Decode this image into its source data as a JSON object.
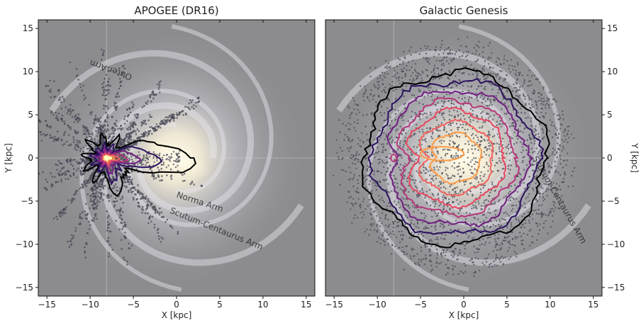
{
  "figure": {
    "background": "#ffffff",
    "backdrop_color": "#8c8c8f",
    "glow_color": "#f4f0e6",
    "point_color": "#4a4a55",
    "ylabel": "Y [kpc]",
    "xlabel": "X [kpc]"
  },
  "chart_data": [
    {
      "type": "scatter",
      "title": "APOGEE (DR16)",
      "xlabel": "X [kpc]",
      "ylabel": "Y [kpc]",
      "xlim": [
        -16,
        16
      ],
      "ylim": [
        -16,
        16
      ],
      "xticks": [
        -15,
        -10,
        -5,
        0,
        5,
        10,
        15
      ],
      "yticks": [
        -15,
        -10,
        -5,
        0,
        5,
        10,
        15
      ],
      "xtick_labels": [
        "−15",
        "−10",
        "−5",
        "0",
        "5",
        "10",
        "15"
      ],
      "ytick_labels": [
        "−15",
        "−10",
        "−5",
        "0",
        "5",
        "10",
        "15"
      ],
      "ylabel_side": "left",
      "sun_position": [
        -8.1,
        0.0
      ],
      "galactic_center": [
        0,
        0
      ],
      "background_labels": [
        "Norma Arm",
        "Scutum-Centaurus Arm",
        "Outer Arm"
      ],
      "density_contours": {
        "colors": [
          "#000000",
          "#2c115f",
          "#721f81",
          "#b73779",
          "#f1605d",
          "#fd9a46",
          "#fcfdbf"
        ],
        "shape": "radial spikes centred on the Sun with an elongated lobe reaching toward the Galactic bar",
        "outer_radius_kpc": 4.5
      }
    },
    {
      "type": "scatter",
      "title": "Galactic Genesis",
      "xlabel": "X [kpc]",
      "ylabel": "Y [kpc]",
      "xlim": [
        -16,
        16
      ],
      "ylim": [
        -16,
        16
      ],
      "xticks": [
        -15,
        -10,
        -5,
        0,
        5,
        10,
        15
      ],
      "yticks": [
        -15,
        -10,
        -5,
        0,
        5,
        10,
        15
      ],
      "xtick_labels": [
        "−15",
        "−10",
        "−5",
        "0",
        "5",
        "10",
        "15"
      ],
      "ytick_labels": [
        "−15",
        "−10",
        "−5",
        "0",
        "5",
        "10",
        "15"
      ],
      "ylabel_side": "right",
      "sun_position": [
        -8.1,
        0.0
      ],
      "galactic_center": [
        0,
        0
      ],
      "background_labels": [
        "Scutum-Centaurus Arm"
      ],
      "density_contours": {
        "colors": [
          "#000000",
          "#2c115f",
          "#721f81",
          "#b73779",
          "#e8465e",
          "#f1605d",
          "#fd9a46"
        ],
        "levels_radius_kpc": [
          10.5,
          9.5,
          8.3,
          7.0,
          5.8,
          4.4,
          3.0
        ],
        "centre": [
          -1.0,
          0.0
        ],
        "bar_lobe": {
          "center": [
            -2.5,
            0.5
          ],
          "length_kpc": 5.0,
          "width_kpc": 1.6
        }
      }
    }
  ]
}
